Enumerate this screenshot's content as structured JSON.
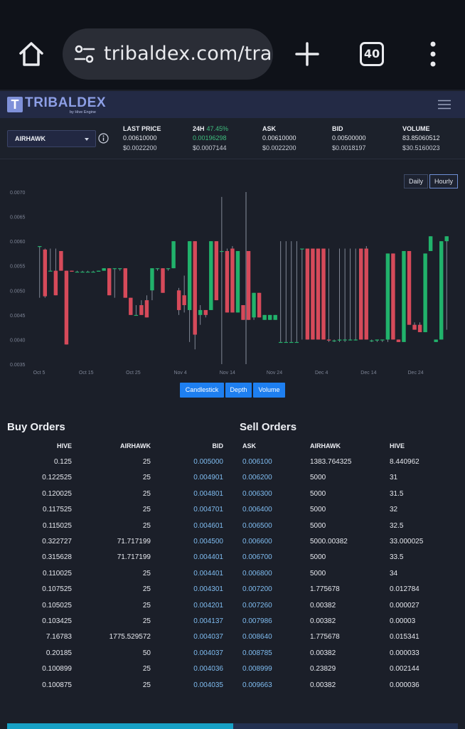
{
  "browser": {
    "url": "tribaldex.com/trade/AIRHAWK",
    "tab_count": "40"
  },
  "site": {
    "logo_letter": "T",
    "logo_name": "TRIBALDEX",
    "logo_sub": "by Hive Engine"
  },
  "market": {
    "token": "AIRHAWK",
    "stats": [
      {
        "label": "LAST PRICE",
        "change": "",
        "v1": "0.00610000",
        "v2": "$0.0022200"
      },
      {
        "label": "24H",
        "change": "47.45%",
        "v1": "0.00196298",
        "v2": "$0.0007144"
      },
      {
        "label": "ASK",
        "change": "",
        "v1": "0.00610000",
        "v2": "$0.0022200"
      },
      {
        "label": "BID",
        "change": "",
        "v1": "0.00500000",
        "v2": "$0.0018197"
      },
      {
        "label": "VOLUME",
        "change": "",
        "v1": "83.85060512",
        "v2": "$30.5160023"
      }
    ]
  },
  "chart": {
    "period_buttons": [
      "Daily",
      "Hourly"
    ],
    "active_period": "Hourly",
    "type_buttons": [
      "Candlestick",
      "Depth",
      "Volume"
    ],
    "colors": {
      "up": "#21b26b",
      "down": "#d64a5a",
      "wick": "#9aa1b0"
    }
  },
  "chart_data": {
    "type": "candlestick",
    "ylim": [
      0.0035,
      0.007
    ],
    "y_ticks": [
      "0.0070",
      "0.0065",
      "0.0060",
      "0.0055",
      "0.0050",
      "0.0045",
      "0.0040",
      "0.0035"
    ],
    "x_ticks": [
      "Oct 5",
      "Oct 15",
      "Oct 25",
      "Nov 4",
      "Nov 14",
      "Nov 24",
      "Dec 4",
      "Dec 14",
      "Dec 24"
    ],
    "candles": [
      {
        "open": 0.0059,
        "high": 0.0059,
        "low": 0.00485,
        "close": 0.0059
      },
      {
        "open": 0.00583,
        "high": 0.00585,
        "low": 0.00485,
        "close": 0.00488
      },
      {
        "open": 0.0054,
        "high": 0.00585,
        "low": 0.0054,
        "close": 0.0054
      },
      {
        "open": 0.0054,
        "high": 0.00585,
        "low": 0.0049,
        "close": 0.0049
      },
      {
        "open": 0.0058,
        "high": 0.0058,
        "low": 0.0054,
        "close": 0.0054
      },
      {
        "open": 0.0054,
        "high": 0.0054,
        "low": 0.0039,
        "close": 0.0039
      },
      {
        "open": 0.0054,
        "high": 0.0054,
        "low": 0.00538,
        "close": 0.00538
      },
      {
        "open": 0.00538,
        "high": 0.0054,
        "low": 0.00538,
        "close": 0.00538
      },
      {
        "open": 0.00538,
        "high": 0.0054,
        "low": 0.00538,
        "close": 0.00538
      },
      {
        "open": 0.00538,
        "high": 0.0054,
        "low": 0.00538,
        "close": 0.00538
      },
      {
        "open": 0.00538,
        "high": 0.0054,
        "low": 0.00538,
        "close": 0.00538
      },
      {
        "open": 0.00538,
        "high": 0.0054,
        "low": 0.00538,
        "close": 0.0054
      },
      {
        "open": 0.0054,
        "high": 0.00545,
        "low": 0.0054,
        "close": 0.00545
      },
      {
        "open": 0.00545,
        "high": 0.00545,
        "low": 0.0049,
        "close": 0.0049
      },
      {
        "open": 0.00545,
        "high": 0.00545,
        "low": 0.00485,
        "close": 0.00545
      },
      {
        "open": 0.00545,
        "high": 0.00545,
        "low": 0.0054,
        "close": 0.00545
      },
      {
        "open": 0.00545,
        "high": 0.00545,
        "low": 0.00485,
        "close": 0.00485
      },
      {
        "open": 0.00485,
        "high": 0.00485,
        "low": 0.0045,
        "close": 0.0045
      },
      {
        "open": 0.0045,
        "high": 0.0047,
        "low": 0.0045,
        "close": 0.0045
      },
      {
        "open": 0.0047,
        "high": 0.0048,
        "low": 0.0045,
        "close": 0.0045
      },
      {
        "open": 0.0048,
        "high": 0.0049,
        "low": 0.00445,
        "close": 0.00445
      },
      {
        "open": 0.005,
        "high": 0.00545,
        "low": 0.0048,
        "close": 0.00545
      },
      {
        "open": 0.00545,
        "high": 0.00545,
        "low": 0.0054,
        "close": 0.00545
      },
      {
        "open": 0.00545,
        "high": 0.00545,
        "low": 0.00495,
        "close": 0.00495
      },
      {
        "open": 0.00545,
        "high": 0.00545,
        "low": 0.0054,
        "close": 0.00545
      },
      {
        "open": 0.00545,
        "high": 0.006,
        "low": 0.00545,
        "close": 0.006
      },
      {
        "open": 0.005,
        "high": 0.00505,
        "low": 0.0045,
        "close": 0.0046
      },
      {
        "open": 0.0049,
        "high": 0.0053,
        "low": 0.00455,
        "close": 0.0047
      },
      {
        "open": 0.0046,
        "high": 0.006,
        "low": 0.00395,
        "close": 0.006
      },
      {
        "open": 0.006,
        "high": 0.006,
        "low": 0.0038,
        "close": 0.0041
      },
      {
        "open": 0.0045,
        "high": 0.0047,
        "low": 0.0043,
        "close": 0.0046
      },
      {
        "open": 0.0046,
        "high": 0.0046,
        "low": 0.00445,
        "close": 0.0045
      },
      {
        "open": 0.0046,
        "high": 0.006,
        "low": 0.0046,
        "close": 0.006
      },
      {
        "open": 0.006,
        "high": 0.006,
        "low": 0.0048,
        "close": 0.0048
      },
      {
        "open": 0.0058,
        "high": 0.0069,
        "low": 0.0035,
        "close": 0.0058
      },
      {
        "open": 0.0058,
        "high": 0.00585,
        "low": 0.00455,
        "close": 0.00455
      },
      {
        "open": 0.00585,
        "high": 0.0059,
        "low": 0.00455,
        "close": 0.00455
      },
      {
        "open": 0.00455,
        "high": 0.0058,
        "low": 0.00455,
        "close": 0.0058
      },
      {
        "open": 0.0047,
        "high": 0.0047,
        "low": 0.0044,
        "close": 0.0044
      },
      {
        "open": 0.0058,
        "high": 0.0058,
        "low": 0.0044,
        "close": 0.0044
      },
      {
        "open": 0.00445,
        "high": 0.00495,
        "low": 0.0044,
        "close": 0.00495
      },
      {
        "open": 0.00495,
        "high": 0.00495,
        "low": 0.00445,
        "close": 0.00445
      },
      {
        "open": 0.0044,
        "high": 0.0045,
        "low": 0.0044,
        "close": 0.0045
      },
      {
        "open": 0.0044,
        "high": 0.0045,
        "low": 0.0044,
        "close": 0.0045
      },
      {
        "open": 0.0044,
        "high": 0.0045,
        "low": 0.0044,
        "close": 0.0045
      },
      {
        "open": 0.00395,
        "high": 0.006,
        "low": 0.00395,
        "close": 0.00395
      },
      {
        "open": 0.00395,
        "high": 0.006,
        "low": 0.00395,
        "close": 0.00395
      },
      {
        "open": 0.00395,
        "high": 0.006,
        "low": 0.00395,
        "close": 0.00395
      },
      {
        "open": 0.00395,
        "high": 0.006,
        "low": 0.00395,
        "close": 0.00395
      },
      {
        "open": 0.00585,
        "high": 0.00585,
        "low": 0.004,
        "close": 0.00585
      },
      {
        "open": 0.00585,
        "high": 0.00585,
        "low": 0.004,
        "close": 0.004
      },
      {
        "open": 0.00585,
        "high": 0.00585,
        "low": 0.004,
        "close": 0.004
      },
      {
        "open": 0.00585,
        "high": 0.00585,
        "low": 0.004,
        "close": 0.004
      },
      {
        "open": 0.00585,
        "high": 0.00585,
        "low": 0.004,
        "close": 0.004
      },
      {
        "open": 0.004,
        "high": 0.00585,
        "low": 0.00395,
        "close": 0.00398
      },
      {
        "open": 0.00398,
        "high": 0.004,
        "low": 0.00395,
        "close": 0.00398
      },
      {
        "open": 0.00398,
        "high": 0.00585,
        "low": 0.00395,
        "close": 0.004
      },
      {
        "open": 0.004,
        "high": 0.00585,
        "low": 0.00395,
        "close": 0.004
      },
      {
        "open": 0.004,
        "high": 0.00585,
        "low": 0.00398,
        "close": 0.004
      },
      {
        "open": 0.004,
        "high": 0.00585,
        "low": 0.00398,
        "close": 0.004
      },
      {
        "open": 0.00585,
        "high": 0.00585,
        "low": 0.004,
        "close": 0.004
      },
      {
        "open": 0.00585,
        "high": 0.0059,
        "low": 0.004,
        "close": 0.004
      },
      {
        "open": 0.00398,
        "high": 0.004,
        "low": 0.00395,
        "close": 0.00398
      },
      {
        "open": 0.00398,
        "high": 0.004,
        "low": 0.00395,
        "close": 0.004
      },
      {
        "open": 0.004,
        "high": 0.004,
        "low": 0.00395,
        "close": 0.004
      },
      {
        "open": 0.004,
        "high": 0.00575,
        "low": 0.00395,
        "close": 0.00575
      },
      {
        "open": 0.00575,
        "high": 0.00575,
        "low": 0.004,
        "close": 0.004
      },
      {
        "open": 0.004,
        "high": 0.004,
        "low": 0.00395,
        "close": 0.00395
      },
      {
        "open": 0.00395,
        "high": 0.0058,
        "low": 0.00395,
        "close": 0.0058
      },
      {
        "open": 0.0058,
        "high": 0.0058,
        "low": 0.0043,
        "close": 0.0043
      },
      {
        "open": 0.0043,
        "high": 0.00435,
        "low": 0.0042,
        "close": 0.0042
      },
      {
        "open": 0.0043,
        "high": 0.00435,
        "low": 0.00415,
        "close": 0.00415
      },
      {
        "open": 0.00415,
        "high": 0.00575,
        "low": 0.00415,
        "close": 0.00575
      },
      {
        "open": 0.0058,
        "high": 0.0061,
        "low": 0.0058,
        "close": 0.0061
      },
      {
        "open": 0.00395,
        "high": 0.004,
        "low": 0.00395,
        "close": 0.004
      },
      {
        "open": 0.004,
        "high": 0.006,
        "low": 0.004,
        "close": 0.006
      },
      {
        "open": 0.006,
        "high": 0.0061,
        "low": 0.0042,
        "close": 0.0061
      }
    ]
  },
  "buy_orders": {
    "title": "Buy Orders",
    "headers": [
      "HIVE",
      "AIRHAWK",
      "BID"
    ],
    "rows": [
      [
        "0.125",
        "25",
        "0.005000"
      ],
      [
        "0.122525",
        "25",
        "0.004901"
      ],
      [
        "0.120025",
        "25",
        "0.004801"
      ],
      [
        "0.117525",
        "25",
        "0.004701"
      ],
      [
        "0.115025",
        "25",
        "0.004601"
      ],
      [
        "0.322727",
        "71.717199",
        "0.004500"
      ],
      [
        "0.315628",
        "71.717199",
        "0.004401"
      ],
      [
        "0.110025",
        "25",
        "0.004401"
      ],
      [
        "0.107525",
        "25",
        "0.004301"
      ],
      [
        "0.105025",
        "25",
        "0.004201"
      ],
      [
        "0.103425",
        "25",
        "0.004137"
      ],
      [
        "7.16783",
        "1775.529572",
        "0.004037"
      ],
      [
        "0.20185",
        "50",
        "0.004037"
      ],
      [
        "0.100899",
        "25",
        "0.004036"
      ],
      [
        "0.100875",
        "25",
        "0.004035"
      ]
    ]
  },
  "sell_orders": {
    "title": "Sell Orders",
    "headers": [
      "ASK",
      "AIRHAWK",
      "HIVE"
    ],
    "rows": [
      [
        "0.006100",
        "1383.764325",
        "8.440962"
      ],
      [
        "0.006200",
        "5000",
        "31"
      ],
      [
        "0.006300",
        "5000",
        "31.5"
      ],
      [
        "0.006400",
        "5000",
        "32"
      ],
      [
        "0.006500",
        "5000",
        "32.5"
      ],
      [
        "0.006600",
        "5000.00382",
        "33.000025"
      ],
      [
        "0.006700",
        "5000",
        "33.5"
      ],
      [
        "0.006800",
        "5000",
        "34"
      ],
      [
        "0.007200",
        "1.775678",
        "0.012784"
      ],
      [
        "0.007260",
        "0.00382",
        "0.000027"
      ],
      [
        "0.007986",
        "0.00382",
        "0.00003"
      ],
      [
        "0.008640",
        "1.775678",
        "0.015341"
      ],
      [
        "0.008785",
        "0.00382",
        "0.000033"
      ],
      [
        "0.008999",
        "0.23829",
        "0.002144"
      ],
      [
        "0.009663",
        "0.00382",
        "0.000036"
      ]
    ]
  }
}
